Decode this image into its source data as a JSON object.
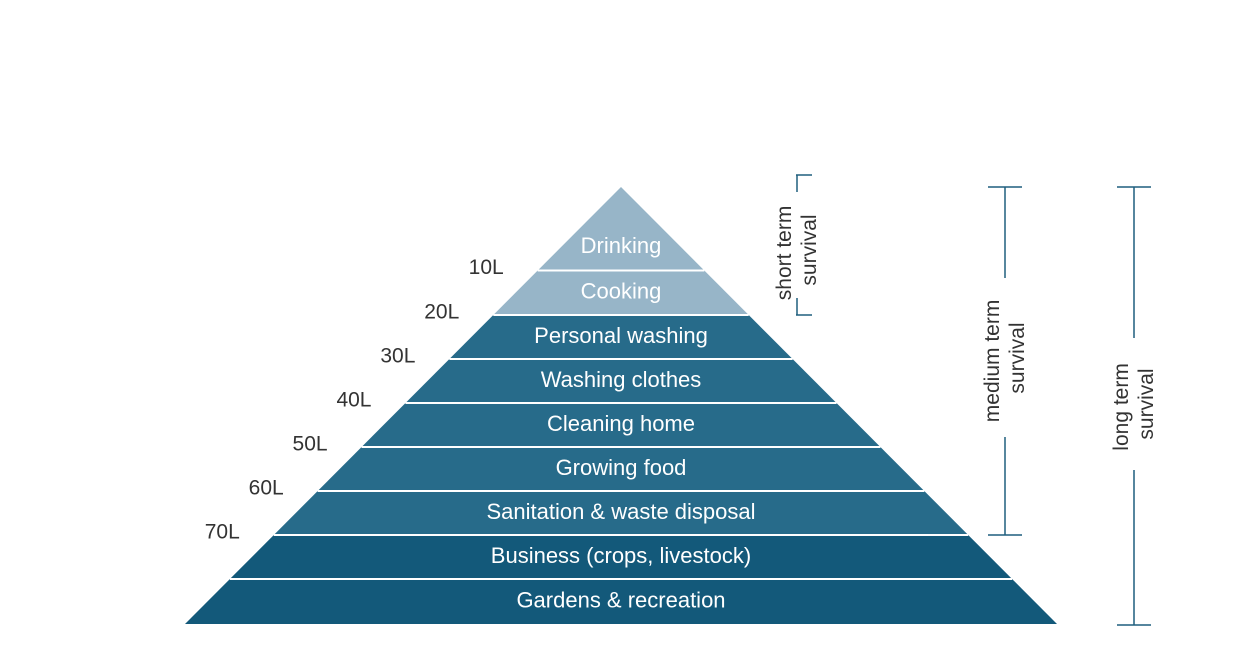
{
  "pyramid": {
    "layers": [
      {
        "label": "Drinking",
        "color": "#97b5c8"
      },
      {
        "label": "Cooking",
        "color": "#97b5c8"
      },
      {
        "label": "Personal washing",
        "color": "#276b8a"
      },
      {
        "label": "Washing clothes",
        "color": "#276b8a"
      },
      {
        "label": "Cleaning home",
        "color": "#276b8a"
      },
      {
        "label": "Growing food",
        "color": "#276b8a"
      },
      {
        "label": "Sanitation & waste disposal",
        "color": "#276b8a"
      },
      {
        "label": "Business (crops, livestock)",
        "color": "#13597a"
      },
      {
        "label": "Gardens & recreation",
        "color": "#13597a"
      }
    ],
    "levels": [
      "10L",
      "20L",
      "30L",
      "40L",
      "50L",
      "60L",
      "70L"
    ]
  },
  "brackets": [
    {
      "line1": "short term",
      "line2": "survival"
    },
    {
      "line1": "medium term",
      "line2": "survival"
    },
    {
      "line1": "long term",
      "line2": "survival"
    }
  ],
  "colors": {
    "bracket_line": "#1f5f7e",
    "separator": "#ffffff",
    "text_dark": "#333333"
  }
}
